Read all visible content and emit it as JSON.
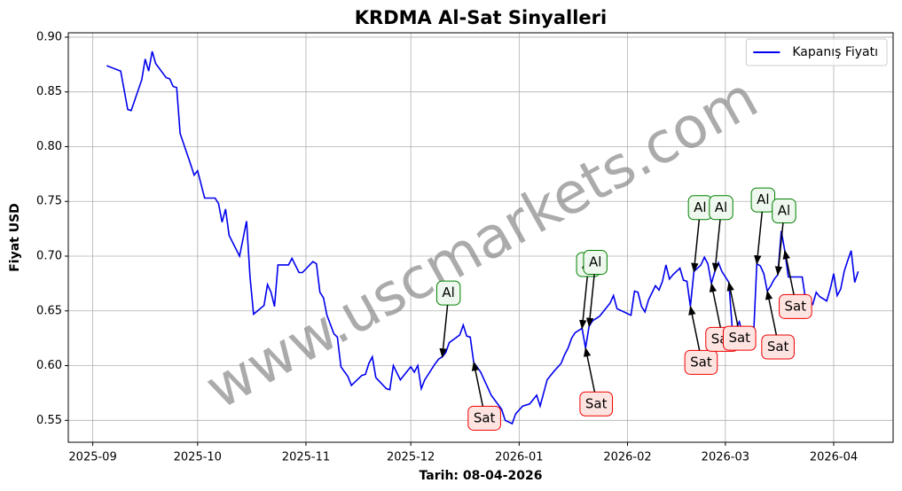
{
  "chart_data": {
    "type": "line",
    "title": "KRDMA Al-Sat Sinyalleri",
    "xlabel": "Tarih: 08-04-2026",
    "ylabel": "Fiyat USD",
    "watermark": "www.uscmarkets.com",
    "legend": "upper right",
    "grid": true,
    "xlim": [
      "2025-08-25",
      "2026-04-18"
    ],
    "ylim": [
      0.53,
      0.904
    ],
    "xticks": [
      {
        "value": "2025-09-01",
        "label": "2025-09"
      },
      {
        "value": "2025-10-01",
        "label": "2025-10"
      },
      {
        "value": "2025-11-01",
        "label": "2025-11"
      },
      {
        "value": "2025-12-01",
        "label": "2025-12"
      },
      {
        "value": "2026-01-01",
        "label": "2026-01"
      },
      {
        "value": "2026-02-01",
        "label": "2026-02"
      },
      {
        "value": "2026-03-01",
        "label": "2026-03"
      },
      {
        "value": "2026-04-01",
        "label": "2026-04"
      }
    ],
    "yticks": [
      0.55,
      {
        "value": 0.6,
        "label": "0.60"
      },
      0.65,
      {
        "value": 0.7,
        "label": "0.70"
      },
      0.75,
      {
        "value": 0.8,
        "label": "0.80"
      },
      0.85,
      {
        "value": 0.9,
        "label": "0.90"
      }
    ],
    "x": [
      "2025-09-05",
      "2025-09-09",
      "2025-09-11",
      "2025-09-12",
      "2025-09-15",
      "2025-09-16",
      "2025-09-17",
      "2025-09-18",
      "2025-09-19",
      "2025-09-22",
      "2025-09-23",
      "2025-09-24",
      "2025-09-25",
      "2025-09-26",
      "2025-09-29",
      "2025-09-30",
      "2025-10-01",
      "2025-10-03",
      "2025-10-06",
      "2025-10-07",
      "2025-10-08",
      "2025-10-09",
      "2025-10-10",
      "2025-10-13",
      "2025-10-15",
      "2025-10-16",
      "2025-10-17",
      "2025-10-20",
      "2025-10-21",
      "2025-10-22",
      "2025-10-23",
      "2025-10-24",
      "2025-10-27",
      "2025-10-28",
      "2025-10-30",
      "2025-10-31",
      "2025-11-03",
      "2025-11-04",
      "2025-11-05",
      "2025-11-06",
      "2025-11-07",
      "2025-11-09",
      "2025-11-10",
      "2025-11-11",
      "2025-11-13",
      "2025-11-14",
      "2025-11-17",
      "2025-11-18",
      "2025-11-19",
      "2025-11-20",
      "2025-11-21",
      "2025-11-24",
      "2025-11-25",
      "2025-11-26",
      "2025-11-28",
      "2025-11-29",
      "2025-11-30",
      "2025-12-01",
      "2025-12-02",
      "2025-12-03",
      "2025-12-04",
      "2025-12-05",
      "2025-12-08",
      "2025-12-09",
      "2025-12-10",
      "2025-12-11",
      "2025-12-12",
      "2025-12-15",
      "2025-12-16",
      "2025-12-17",
      "2025-12-18",
      "2025-12-19",
      "2025-12-21",
      "2025-12-22",
      "2025-12-23",
      "2025-12-24",
      "2025-12-27",
      "2025-12-28",
      "2025-12-30",
      "2025-12-31",
      "2026-01-02",
      "2026-01-04",
      "2026-01-06",
      "2026-01-07",
      "2026-01-09",
      "2026-01-10",
      "2026-01-11",
      "2026-01-13",
      "2026-01-14",
      "2026-01-15",
      "2026-01-16",
      "2026-01-17",
      "2026-01-19",
      "2026-01-20",
      "2026-01-21",
      "2026-01-22",
      "2026-01-24",
      "2026-01-25",
      "2026-01-27",
      "2026-01-28",
      "2026-01-29",
      "2026-01-31",
      "2026-02-02",
      "2026-02-03",
      "2026-02-04",
      "2026-02-05",
      "2026-02-06",
      "2026-02-07",
      "2026-02-09",
      "2026-02-10",
      "2026-02-11",
      "2026-02-12",
      "2026-02-13",
      "2026-02-14",
      "2026-02-16",
      "2026-02-17",
      "2026-02-18",
      "2026-02-19",
      "2026-02-20",
      "2026-02-22",
      "2026-02-23",
      "2026-02-24",
      "2026-02-25",
      "2026-02-26",
      "2026-02-27",
      "2026-02-28",
      "2026-03-02",
      "2026-03-03",
      "2026-03-04",
      "2026-03-05",
      "2026-03-06",
      "2026-03-07",
      "2026-03-09",
      "2026-03-10",
      "2026-03-11",
      "2026-03-12",
      "2026-03-13",
      "2026-03-14",
      "2026-03-15",
      "2026-03-16",
      "2026-03-17",
      "2026-03-18",
      "2026-03-19",
      "2026-03-21",
      "2026-03-23",
      "2026-03-24",
      "2026-03-25",
      "2026-03-26",
      "2026-03-27",
      "2026-03-28",
      "2026-03-30",
      "2026-03-31",
      "2026-04-01",
      "2026-04-02",
      "2026-04-03",
      "2026-04-04",
      "2026-04-05",
      "2026-04-06",
      "2026-04-07",
      "2026-04-08"
    ],
    "series": [
      {
        "name": "Kapanış Fiyatı",
        "color": "#0000ee",
        "values": [
          0.874,
          0.869,
          0.834,
          0.833,
          0.861,
          0.88,
          0.869,
          0.887,
          0.876,
          0.863,
          0.862,
          0.855,
          0.854,
          0.812,
          0.784,
          0.774,
          0.778,
          0.753,
          0.753,
          0.748,
          0.731,
          0.743,
          0.719,
          0.7,
          0.732,
          0.681,
          0.647,
          0.655,
          0.674,
          0.667,
          0.654,
          0.692,
          0.692,
          0.698,
          0.685,
          0.685,
          0.695,
          0.693,
          0.667,
          0.662,
          0.646,
          0.629,
          0.626,
          0.599,
          0.59,
          0.582,
          0.591,
          0.592,
          0.602,
          0.608,
          0.589,
          0.579,
          0.578,
          0.6,
          0.587,
          0.591,
          0.595,
          0.599,
          0.594,
          0.6,
          0.579,
          0.587,
          0.602,
          0.606,
          0.608,
          0.612,
          0.621,
          0.628,
          0.637,
          0.627,
          0.626,
          0.603,
          0.594,
          0.587,
          0.58,
          0.573,
          0.56,
          0.55,
          0.547,
          0.556,
          0.563,
          0.565,
          0.573,
          0.563,
          0.587,
          0.591,
          0.595,
          0.602,
          0.61,
          0.616,
          0.625,
          0.63,
          0.634,
          0.616,
          0.636,
          0.641,
          0.645,
          0.649,
          0.657,
          0.664,
          0.652,
          0.649,
          0.646,
          0.668,
          0.667,
          0.654,
          0.649,
          0.66,
          0.673,
          0.669,
          0.677,
          0.692,
          0.679,
          0.683,
          0.689,
          0.678,
          0.677,
          0.654,
          0.686,
          0.692,
          0.699,
          0.693,
          0.675,
          0.686,
          0.694,
          0.686,
          0.676,
          0.633,
          0.634,
          0.64,
          0.628,
          0.633,
          0.623,
          0.693,
          0.691,
          0.684,
          0.668,
          0.673,
          0.679,
          0.683,
          0.723,
          0.705,
          0.681,
          0.681,
          0.681,
          0.659,
          0.659,
          0.656,
          0.667,
          0.663,
          0.659,
          0.67,
          0.684,
          0.664,
          0.67,
          0.686,
          0.696,
          0.705,
          0.676,
          0.686
        ]
      }
    ],
    "annotations": [
      {
        "text": "Al",
        "x": "2025-12-10",
        "y": 0.608,
        "color": "#008000",
        "fill": "#eef8ee"
      },
      {
        "text": "Sat",
        "x": "2025-12-19",
        "y": 0.603,
        "color": "#ee0000",
        "fill": "#fde4e1"
      },
      {
        "text": "Al",
        "x": "2026-01-19",
        "y": 0.634,
        "color": "#008000",
        "fill": "#eef8ee"
      },
      {
        "text": "Sat",
        "x": "2026-01-20",
        "y": 0.616,
        "color": "#ee0000",
        "fill": "#fde4e1"
      },
      {
        "text": "Al",
        "x": "2026-01-21",
        "y": 0.636,
        "color": "#008000",
        "fill": "#eef8ee"
      },
      {
        "text": "Sat",
        "x": "2026-02-19",
        "y": 0.654,
        "color": "#ee0000",
        "fill": "#fde4e1"
      },
      {
        "text": "Al",
        "x": "2026-02-20",
        "y": 0.686,
        "color": "#008000",
        "fill": "#eef8ee"
      },
      {
        "text": "Sat",
        "x": "2026-02-25",
        "y": 0.675,
        "color": "#ee0000",
        "fill": "#fde4e1"
      },
      {
        "text": "Al",
        "x": "2026-02-26",
        "y": 0.686,
        "color": "#008000",
        "fill": "#eef8ee"
      },
      {
        "text": "Sat",
        "x": "2026-03-02",
        "y": 0.676,
        "color": "#ee0000",
        "fill": "#fde4e1"
      },
      {
        "text": "Al",
        "x": "2026-03-10",
        "y": 0.693,
        "color": "#008000",
        "fill": "#eef8ee"
      },
      {
        "text": "Sat",
        "x": "2026-03-13",
        "y": 0.668,
        "color": "#ee0000",
        "fill": "#fde4e1"
      },
      {
        "text": "Al",
        "x": "2026-03-16",
        "y": 0.683,
        "color": "#008000",
        "fill": "#eef8ee"
      },
      {
        "text": "Sat",
        "x": "2026-03-18",
        "y": 0.705,
        "color": "#ee0000",
        "fill": "#fde4e1"
      }
    ]
  }
}
